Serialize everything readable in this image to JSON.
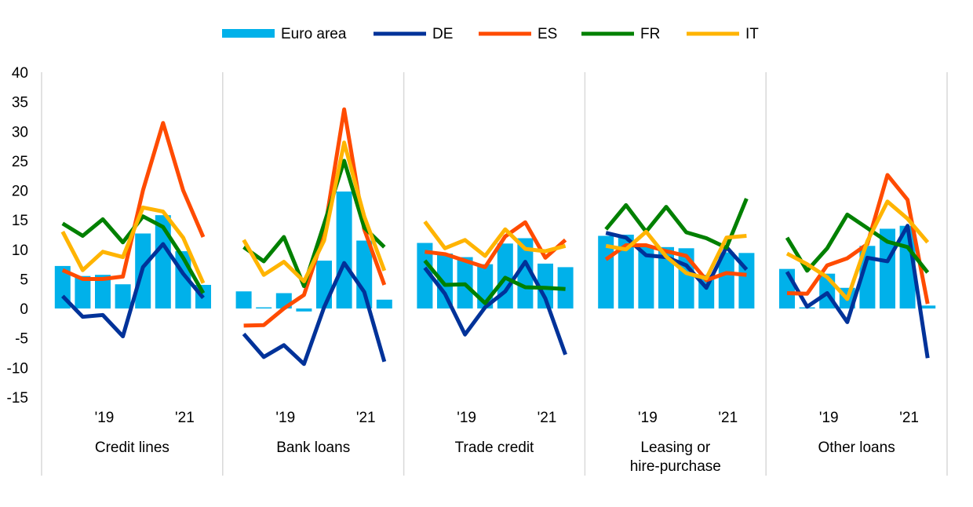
{
  "chart_data": {
    "type": "bar+line",
    "title": "",
    "ylim": [
      -15,
      40
    ],
    "y_ticks": [
      -15,
      -10,
      -5,
      0,
      5,
      10,
      15,
      20,
      25,
      30,
      35,
      40
    ],
    "grid": "vertical panel separators only",
    "legend_position": "top-center",
    "x_tick_labels": [
      "'19",
      "'21"
    ],
    "panels": [
      "Credit lines",
      "Bank loans",
      "Trade credit",
      "Leasing or hire-purchase",
      "Other loans"
    ],
    "panel_label_lines": [
      [
        "Credit lines"
      ],
      [
        "Bank loans"
      ],
      [
        "Trade credit"
      ],
      [
        "Leasing or",
        "hire-purchase"
      ],
      [
        "Other loans"
      ]
    ],
    "series": [
      {
        "name": "Euro area",
        "kind": "bar",
        "color": "#00b1ea",
        "values": [
          [
            7.2,
            5.5,
            5.7,
            4.1,
            12.7,
            15.8,
            9.7,
            4.0
          ],
          [
            2.9,
            0.2,
            2.6,
            -0.5,
            8.1,
            19.8,
            11.5,
            1.5
          ],
          [
            11.1,
            9.3,
            8.7,
            7.5,
            11.0,
            11.9,
            7.6,
            7.0
          ],
          [
            12.3,
            12.5,
            10.4,
            10.4,
            10.2,
            5.7,
            9.5,
            9.4
          ],
          [
            6.7,
            0.2,
            5.9,
            3.5,
            10.6,
            13.5,
            14.0,
            0.5
          ]
        ]
      },
      {
        "name": "DE",
        "kind": "line",
        "color": "#003299",
        "values": [
          [
            2.1,
            -1.4,
            -1.1,
            -4.7,
            7.0,
            10.9,
            5.9,
            1.8
          ],
          [
            -4.3,
            -8.2,
            -6.2,
            -9.4,
            0.2,
            7.7,
            2.8,
            -9.0
          ],
          [
            6.9,
            2.5,
            -4.4,
            0.2,
            2.9,
            7.9,
            1.7,
            -7.8
          ],
          [
            12.8,
            12.0,
            9.0,
            8.7,
            7.3,
            3.5,
            10.4,
            6.6
          ],
          [
            6.2,
            0.3,
            2.6,
            -2.3,
            8.6,
            8.0,
            14.0,
            -8.4
          ]
        ]
      },
      {
        "name": "ES",
        "kind": "line",
        "color": "#ff4b00",
        "values": [
          [
            6.5,
            5.0,
            5.0,
            5.4,
            20.0,
            31.4,
            20.0,
            12.1
          ],
          [
            -2.9,
            -2.8,
            0.0,
            2.3,
            12.6,
            33.7,
            13.4,
            4.0
          ],
          [
            9.6,
            9.2,
            8.1,
            7.0,
            12.2,
            14.6,
            8.6,
            11.6
          ],
          [
            8.3,
            10.7,
            10.7,
            9.7,
            8.9,
            4.8,
            6.0,
            5.7
          ],
          [
            2.6,
            2.5,
            7.3,
            8.5,
            10.9,
            22.6,
            18.4,
            0.8
          ]
        ]
      },
      {
        "name": "FR",
        "kind": "line",
        "color": "#008000",
        "values": [
          [
            14.4,
            12.3,
            15.1,
            11.2,
            15.6,
            13.8,
            8.6,
            2.6
          ],
          [
            10.4,
            8.0,
            12.1,
            3.8,
            14.3,
            25.0,
            13.7,
            10.4
          ],
          [
            8.1,
            4.0,
            4.1,
            0.9,
            5.2,
            3.6,
            3.5,
            3.3
          ],
          [
            13.4,
            17.5,
            13.0,
            17.2,
            12.9,
            11.9,
            10.3,
            18.6
          ],
          [
            12.0,
            6.4,
            10.2,
            15.9,
            13.6,
            11.3,
            10.4,
            6.1
          ]
        ]
      },
      {
        "name": "IT",
        "kind": "line",
        "color": "#ffb400",
        "values": [
          [
            13.0,
            6.5,
            9.6,
            8.7,
            17.1,
            16.4,
            12.0,
            4.3
          ],
          [
            11.6,
            5.7,
            7.9,
            4.6,
            11.5,
            28.1,
            15.6,
            6.4
          ],
          [
            14.7,
            10.2,
            11.6,
            8.9,
            13.4,
            10.1,
            9.7,
            10.6
          ],
          [
            10.6,
            10.0,
            13.0,
            8.8,
            6.0,
            5.1,
            12.0,
            12.3
          ],
          [
            9.3,
            7.5,
            5.3,
            1.6,
            11.4,
            18.1,
            15.2,
            11.2
          ]
        ]
      }
    ]
  }
}
